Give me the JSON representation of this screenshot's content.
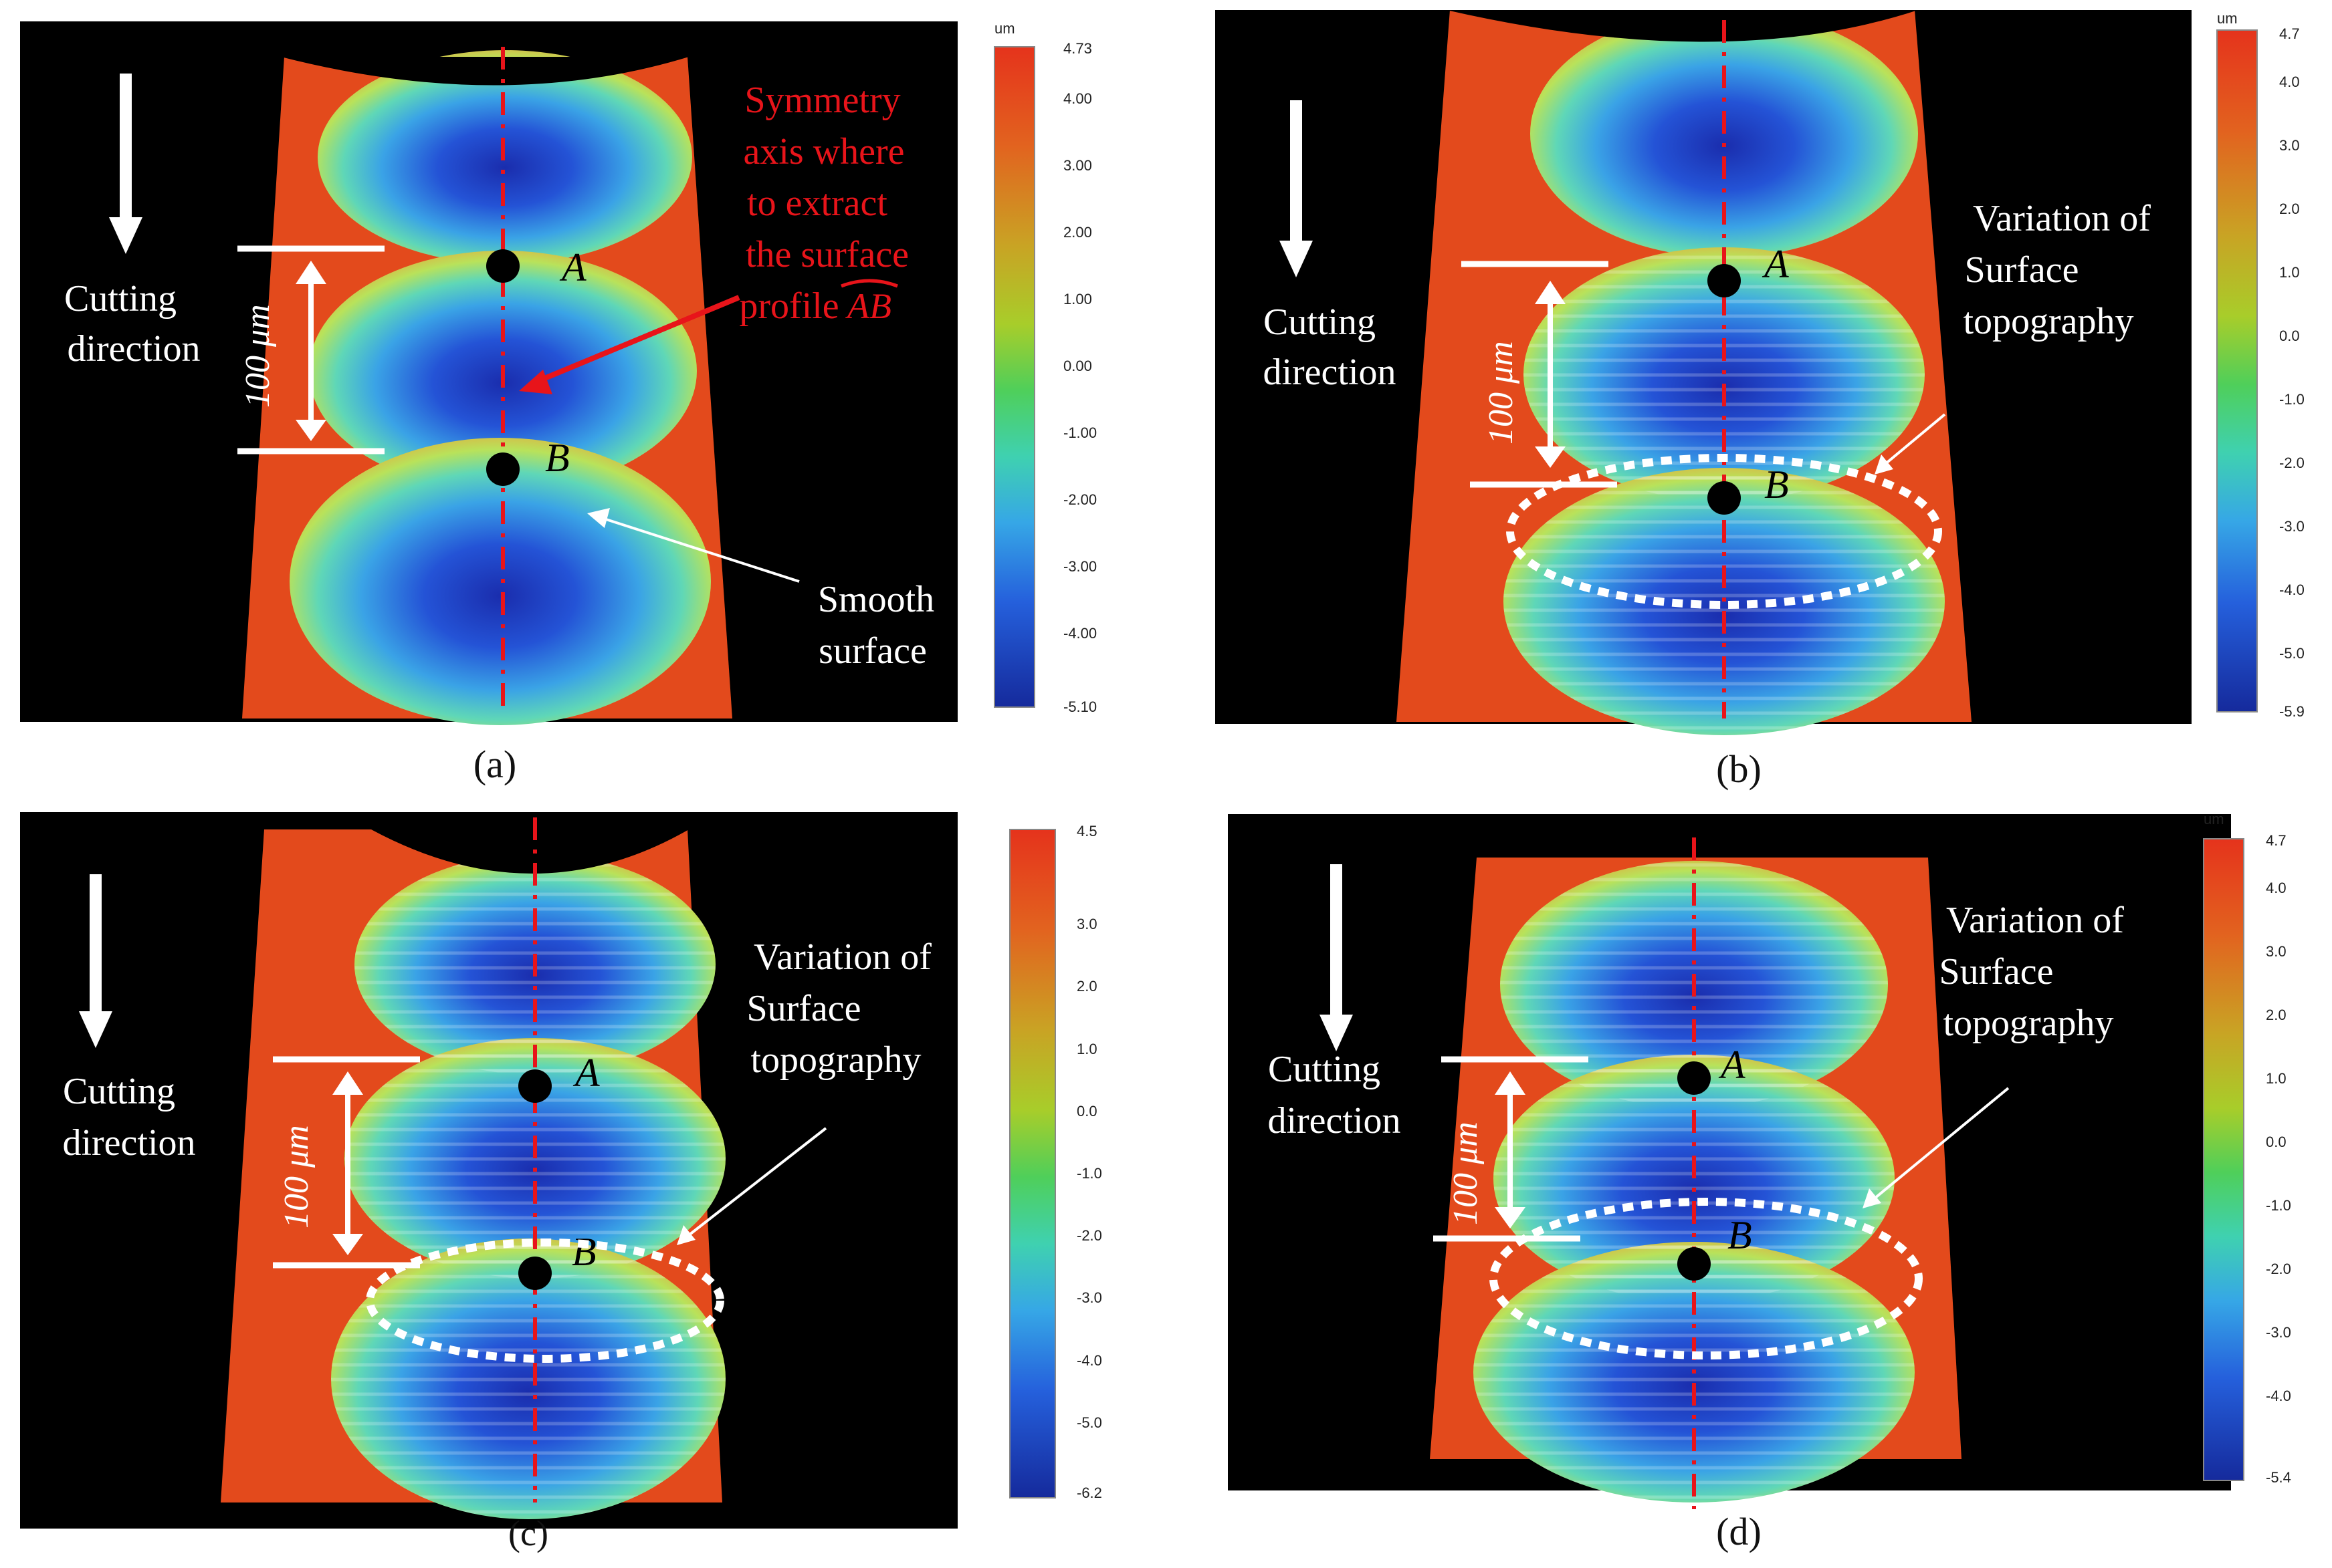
{
  "panels": {
    "a": {
      "caption": "(a)",
      "cutting_label": [
        "Cutting",
        "direction"
      ],
      "scale_label": "100 μm",
      "point_a": "A",
      "point_b": "B",
      "annotation": [
        "Symmetry",
        "axis where",
        "to extract",
        "the surface",
        "profile"
      ],
      "profile_label": "AB",
      "smooth_label": [
        "Smooth",
        "surface"
      ],
      "colorbar": {
        "unit": "um",
        "ticks": [
          "4.73",
          "4.00",
          "3.00",
          "2.00",
          "1.00",
          "0.00",
          "-1.00",
          "-2.00",
          "-3.00",
          "-4.00",
          "-5.10"
        ]
      }
    },
    "b": {
      "caption": "(b)",
      "cutting_label": [
        "Cutting",
        "direction"
      ],
      "scale_label": "100 μm",
      "point_a": "A",
      "point_b": "B",
      "variation_label": [
        "Variation of",
        "Surface",
        "topography"
      ],
      "colorbar": {
        "unit": "um",
        "ticks": [
          "4.7",
          "4.0",
          "3.0",
          "2.0",
          "1.0",
          "0.0",
          "-1.0",
          "-2.0",
          "-3.0",
          "-4.0",
          "-5.0",
          "-5.9"
        ]
      }
    },
    "c": {
      "caption": "(c)",
      "cutting_label": [
        "Cutting",
        "direction"
      ],
      "scale_label": "100 μm",
      "point_a": "A",
      "point_b": "B",
      "variation_label": [
        "Variation of",
        "Surface",
        "topography"
      ],
      "colorbar": {
        "unit": "",
        "ticks": [
          "4.5",
          "3.0",
          "2.0",
          "1.0",
          "0.0",
          "-1.0",
          "-2.0",
          "-3.0",
          "-4.0",
          "-5.0",
          "-6.2"
        ]
      }
    },
    "d": {
      "caption": "(d)",
      "cutting_label": [
        "Cutting",
        "direction"
      ],
      "scale_label": "100 μm",
      "point_a": "A",
      "point_b": "B",
      "variation_label": [
        "Variation of",
        "Surface",
        "topography"
      ],
      "colorbar": {
        "unit": "um",
        "ticks": [
          "4.7",
          "4.0",
          "3.0",
          "2.0",
          "1.0",
          "0.0",
          "-1.0",
          "-2.0",
          "-3.0",
          "-4.0",
          "-5.4"
        ]
      }
    }
  },
  "colors": {
    "background_black": "#000000",
    "surface_red": "#e34a1c",
    "deep_blue": "#1a2fb8",
    "axis_red": "#e8141a"
  }
}
